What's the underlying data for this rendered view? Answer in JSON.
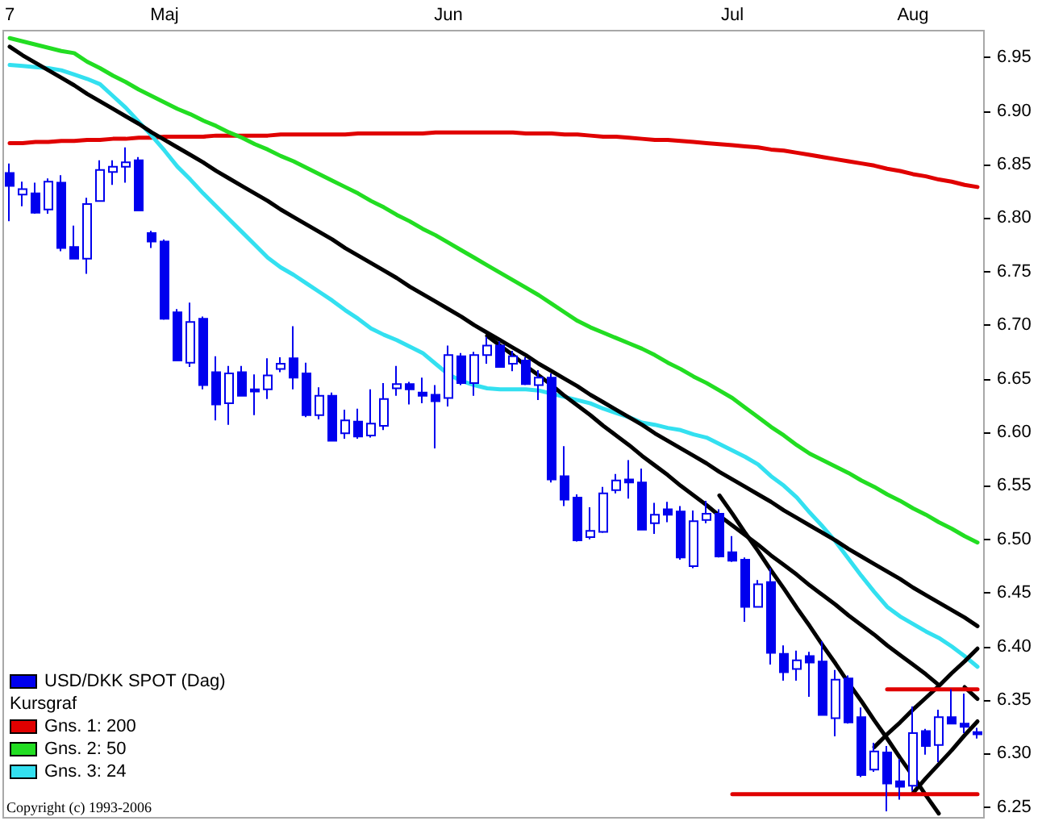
{
  "chart_data": {
    "type": "candlestick",
    "subtitle": "Kursgraf",
    "annotations": [
      "Copyright (c) 1993-2006"
    ],
    "legend": "bottom left",
    "marker": "none",
    "categories": [
      "7",
      null,
      null,
      null,
      null,
      null,
      null,
      null,
      null,
      null,
      null,
      null,
      "Maj",
      null,
      null,
      null,
      null,
      null,
      null,
      null,
      null,
      null,
      null,
      null,
      null,
      null,
      null,
      null,
      null,
      null,
      null,
      null,
      null,
      null,
      "Jun",
      null,
      null,
      null,
      null,
      null,
      null,
      null,
      null,
      null,
      null,
      null,
      null,
      null,
      null,
      null,
      null,
      null,
      null,
      null,
      null,
      null,
      "Jul",
      null,
      null,
      null,
      null,
      null,
      null,
      null,
      null,
      null,
      null,
      null,
      null,
      null,
      "Aug",
      null,
      null,
      null,
      null,
      null
    ],
    "ylim": [
      6.24,
      6.975
    ],
    "yticks": [
      6.25,
      {
        "value": 6.3,
        "label": "6.30"
      },
      6.35,
      {
        "value": 6.4,
        "label": "6.40"
      },
      6.45,
      {
        "value": 6.5,
        "label": "6.50"
      },
      6.55,
      {
        "value": 6.6,
        "label": "6.60"
      },
      6.65,
      {
        "value": 6.7,
        "label": "6.70"
      },
      6.75,
      {
        "value": 6.8,
        "label": "6.80"
      },
      6.85,
      {
        "value": 6.9,
        "label": "6.90"
      },
      6.95
    ],
    "series": [
      {
        "name": "USD/DKK SPOT (Dag)",
        "color": "#0000ee",
        "ohlc": [
          [
            6.842,
            6.851,
            6.797,
            6.83
          ],
          [
            6.822,
            6.834,
            6.811,
            6.827
          ],
          [
            6.823,
            6.833,
            6.804,
            6.805
          ],
          [
            6.808,
            6.837,
            6.804,
            6.834
          ],
          [
            6.833,
            6.84,
            6.769,
            6.772
          ],
          [
            6.773,
            6.793,
            6.762,
            6.762
          ],
          [
            6.762,
            6.819,
            6.748,
            6.813
          ],
          [
            6.816,
            6.854,
            6.816,
            6.845
          ],
          [
            6.843,
            6.854,
            6.831,
            6.848
          ],
          [
            6.848,
            6.866,
            6.833,
            6.852
          ],
          [
            6.854,
            6.857,
            6.807,
            6.807
          ],
          [
            6.786,
            6.788,
            6.772,
            6.778
          ],
          [
            6.778,
            6.78,
            6.705,
            6.706
          ],
          [
            6.712,
            6.715,
            6.667,
            6.667
          ],
          [
            6.665,
            6.721,
            6.661,
            6.703
          ],
          [
            6.706,
            6.708,
            6.64,
            6.644
          ],
          [
            6.656,
            6.671,
            6.611,
            6.626
          ],
          [
            6.627,
            6.662,
            6.607,
            6.655
          ],
          [
            6.656,
            6.662,
            6.634,
            6.634
          ],
          [
            6.64,
            6.654,
            6.616,
            6.638
          ],
          [
            6.64,
            6.669,
            6.631,
            6.653
          ],
          [
            6.659,
            6.67,
            6.656,
            6.664
          ],
          [
            6.669,
            6.699,
            6.64,
            6.651
          ],
          [
            6.655,
            6.665,
            6.614,
            6.616
          ],
          [
            6.616,
            6.642,
            6.612,
            6.634
          ],
          [
            6.634,
            6.637,
            6.592,
            6.592
          ],
          [
            6.599,
            6.621,
            6.594,
            6.611
          ],
          [
            6.61,
            6.622,
            6.594,
            6.596
          ],
          [
            6.597,
            6.64,
            6.595,
            6.608
          ],
          [
            6.606,
            6.646,
            6.602,
            6.631
          ],
          [
            6.641,
            6.662,
            6.634,
            6.645
          ],
          [
            6.645,
            6.647,
            6.626,
            6.64
          ],
          [
            6.637,
            6.651,
            6.627,
            6.634
          ],
          [
            6.635,
            6.644,
            6.585,
            6.629
          ],
          [
            6.632,
            6.681,
            6.624,
            6.672
          ],
          [
            6.671,
            6.674,
            6.644,
            6.646
          ],
          [
            6.646,
            6.675,
            6.634,
            6.672
          ],
          [
            6.672,
            6.689,
            6.664,
            6.681
          ],
          [
            6.681,
            6.685,
            6.661,
            6.661
          ],
          [
            6.664,
            6.676,
            6.657,
            6.671
          ],
          [
            6.667,
            6.67,
            6.644,
            6.645
          ],
          [
            6.644,
            6.658,
            6.63,
            6.651
          ],
          [
            6.651,
            6.655,
            6.553,
            6.556
          ],
          [
            6.559,
            6.587,
            6.531,
            6.537
          ],
          [
            6.539,
            6.542,
            6.498,
            6.499
          ],
          [
            6.502,
            6.53,
            6.5,
            6.508
          ],
          [
            6.507,
            6.549,
            6.506,
            6.543
          ],
          [
            6.546,
            6.561,
            6.543,
            6.555
          ],
          [
            6.556,
            6.574,
            6.538,
            6.553
          ],
          [
            6.553,
            6.566,
            6.509,
            6.509
          ],
          [
            6.515,
            6.534,
            6.505,
            6.523
          ],
          [
            6.528,
            6.535,
            6.516,
            6.523
          ],
          [
            6.526,
            6.531,
            6.481,
            6.483
          ],
          [
            6.475,
            6.527,
            6.473,
            6.517
          ],
          [
            6.518,
            6.536,
            6.515,
            6.524
          ],
          [
            6.524,
            6.528,
            6.483,
            6.484
          ],
          [
            6.488,
            6.503,
            6.479,
            6.48
          ],
          [
            6.481,
            6.483,
            6.423,
            6.437
          ],
          [
            6.437,
            6.462,
            6.437,
            6.458
          ],
          [
            6.46,
            6.473,
            6.383,
            6.394
          ],
          [
            6.393,
            6.401,
            6.368,
            6.376
          ],
          [
            6.379,
            6.396,
            6.368,
            6.387
          ],
          [
            6.391,
            6.395,
            6.353,
            6.385
          ],
          [
            6.386,
            6.405,
            6.336,
            6.336
          ],
          [
            6.333,
            6.378,
            6.316,
            6.369
          ],
          [
            6.37,
            6.373,
            6.328,
            6.329
          ],
          [
            6.334,
            6.343,
            6.278,
            6.28
          ],
          [
            6.285,
            6.31,
            6.283,
            6.302
          ],
          [
            6.301,
            6.307,
            6.246,
            6.272
          ],
          [
            6.274,
            6.295,
            6.257,
            6.269
          ],
          [
            6.27,
            6.344,
            6.265,
            6.319
          ],
          [
            6.321,
            6.323,
            6.299,
            6.307
          ],
          [
            6.308,
            6.341,
            6.292,
            6.334
          ],
          [
            6.334,
            6.36,
            6.328,
            6.328
          ],
          [
            6.328,
            6.356,
            6.319,
            6.325
          ],
          [
            6.32,
            6.324,
            6.314,
            6.318
          ]
        ]
      },
      {
        "type": "line",
        "name": "Gns. 1: 200",
        "color": "#e00000",
        "values": [
          6.87,
          6.87,
          6.871,
          6.871,
          6.872,
          6.872,
          6.873,
          6.873,
          6.874,
          6.874,
          6.875,
          6.875,
          6.876,
          6.876,
          6.876,
          6.876,
          6.877,
          6.877,
          6.877,
          6.877,
          6.877,
          6.878,
          6.878,
          6.878,
          6.878,
          6.878,
          6.878,
          6.879,
          6.879,
          6.879,
          6.879,
          6.879,
          6.879,
          6.88,
          6.88,
          6.88,
          6.88,
          6.88,
          6.88,
          6.88,
          6.879,
          6.879,
          6.879,
          6.878,
          6.878,
          6.877,
          6.876,
          6.876,
          6.875,
          6.874,
          6.873,
          6.873,
          6.872,
          6.871,
          6.87,
          6.869,
          6.868,
          6.867,
          6.866,
          6.864,
          6.863,
          6.861,
          6.859,
          6.857,
          6.855,
          6.853,
          6.851,
          6.849,
          6.846,
          6.844,
          6.841,
          6.839,
          6.836,
          6.834,
          6.831,
          6.829
        ]
      },
      {
        "type": "line",
        "name": "Gns. 2: 50",
        "color": "#22dd22",
        "values": [
          6.968,
          6.965,
          6.962,
          6.959,
          6.956,
          6.954,
          6.946,
          6.94,
          6.933,
          6.927,
          6.92,
          6.914,
          6.908,
          6.902,
          6.897,
          6.891,
          6.886,
          6.88,
          6.875,
          6.869,
          6.864,
          6.858,
          6.853,
          6.847,
          6.841,
          6.835,
          6.829,
          6.823,
          6.816,
          6.81,
          6.803,
          6.797,
          6.79,
          6.784,
          6.777,
          6.77,
          6.763,
          6.756,
          6.749,
          6.742,
          6.735,
          6.728,
          6.72,
          6.712,
          6.704,
          6.698,
          6.693,
          6.688,
          6.683,
          6.678,
          6.672,
          6.665,
          6.659,
          6.652,
          6.646,
          6.639,
          6.632,
          6.623,
          6.614,
          6.605,
          6.597,
          6.588,
          6.58,
          6.574,
          6.568,
          6.562,
          6.555,
          6.549,
          6.542,
          6.536,
          6.529,
          6.523,
          6.516,
          6.51,
          6.503,
          6.497
        ]
      },
      {
        "type": "line",
        "name": "Gns. 3: 24",
        "color": "#33e0f0",
        "values": [
          6.943,
          6.942,
          6.941,
          6.94,
          6.938,
          6.934,
          6.93,
          6.925,
          6.914,
          6.903,
          6.89,
          6.877,
          6.863,
          6.848,
          6.836,
          6.823,
          6.811,
          6.799,
          6.787,
          6.775,
          6.763,
          6.754,
          6.747,
          6.739,
          6.731,
          6.723,
          6.714,
          6.706,
          6.697,
          6.691,
          6.686,
          6.68,
          6.674,
          6.664,
          6.654,
          6.648,
          6.644,
          6.641,
          6.64,
          6.64,
          6.64,
          6.639,
          6.636,
          6.633,
          6.63,
          6.627,
          6.622,
          6.618,
          6.614,
          6.609,
          6.607,
          6.604,
          6.602,
          6.598,
          6.595,
          6.589,
          6.583,
          6.577,
          6.57,
          6.559,
          6.55,
          6.539,
          6.525,
          6.512,
          6.498,
          6.482,
          6.466,
          6.451,
          6.437,
          6.428,
          6.421,
          6.414,
          6.408,
          6.4,
          6.391,
          6.381
        ]
      },
      {
        "type": "line",
        "color": "#000000",
        "values": [
          6.96,
          6.952,
          6.945,
          6.938,
          6.931,
          6.924,
          6.916,
          6.909,
          6.902,
          6.895,
          6.888,
          6.88,
          6.873,
          6.866,
          6.859,
          6.852,
          6.844,
          6.837,
          6.83,
          6.823,
          6.816,
          6.808,
          6.801,
          6.794,
          6.787,
          6.78,
          6.772,
          6.765,
          6.758,
          6.751,
          6.744,
          6.736,
          6.729,
          6.722,
          6.715,
          6.708,
          6.7,
          6.693,
          6.686,
          6.679,
          6.672,
          6.664,
          6.657,
          6.65,
          6.643,
          6.635,
          6.628,
          6.621,
          6.614,
          6.607,
          6.599,
          6.592,
          6.585,
          6.578,
          6.571,
          6.563,
          6.556,
          6.549,
          6.542,
          6.535,
          6.527,
          6.52,
          6.513,
          6.506,
          6.499,
          6.491,
          6.484,
          6.477,
          6.47,
          6.463,
          6.455,
          6.448,
          6.441,
          6.434,
          6.427,
          6.419
        ]
      },
      {
        "type": "line",
        "color": "#000000",
        "values": [
          null,
          null,
          null,
          null,
          null,
          null,
          null,
          null,
          null,
          null,
          null,
          null,
          null,
          null,
          null,
          null,
          null,
          null,
          null,
          null,
          null,
          null,
          null,
          null,
          null,
          null,
          null,
          null,
          null,
          null,
          null,
          null,
          null,
          null,
          null,
          null,
          null,
          6.69,
          6.681,
          6.672,
          6.662,
          6.653,
          6.644,
          6.634,
          6.625,
          6.616,
          6.606,
          6.597,
          6.588,
          6.578,
          6.569,
          6.56,
          6.55,
          6.541,
          6.532,
          6.522,
          6.513,
          6.504,
          6.495,
          6.485,
          6.476,
          6.467,
          6.457,
          6.448,
          6.439,
          6.429,
          6.42,
          6.411,
          6.401,
          6.392,
          6.383,
          6.374,
          6.364,
          null,
          null,
          null
        ]
      },
      {
        "type": "line",
        "color": "#000000",
        "values": [
          null,
          null,
          null,
          null,
          null,
          null,
          null,
          null,
          null,
          null,
          null,
          null,
          null,
          null,
          null,
          null,
          null,
          null,
          null,
          null,
          null,
          null,
          null,
          null,
          null,
          null,
          null,
          null,
          null,
          null,
          null,
          null,
          null,
          null,
          null,
          null,
          null,
          null,
          null,
          null,
          null,
          null,
          null,
          null,
          null,
          null,
          null,
          null,
          null,
          null,
          null,
          null,
          null,
          null,
          null,
          6.541,
          6.524,
          6.506,
          6.489,
          6.471,
          6.454,
          6.436,
          6.419,
          6.401,
          6.384,
          6.366,
          6.349,
          6.331,
          6.314,
          6.296,
          6.279,
          6.261,
          6.244,
          null,
          null,
          null
        ]
      },
      {
        "type": "line",
        "color": "#000000",
        "values": [
          null,
          null,
          null,
          null,
          null,
          null,
          null,
          null,
          null,
          null,
          null,
          null,
          null,
          null,
          null,
          null,
          null,
          null,
          null,
          null,
          null,
          null,
          null,
          null,
          null,
          null,
          null,
          null,
          null,
          null,
          null,
          null,
          null,
          null,
          null,
          null,
          null,
          null,
          null,
          null,
          null,
          null,
          null,
          null,
          null,
          null,
          null,
          null,
          null,
          null,
          null,
          null,
          null,
          null,
          null,
          null,
          null,
          null,
          null,
          null,
          null,
          null,
          null,
          null,
          null,
          null,
          null,
          6.306,
          6.318,
          6.329,
          6.341,
          6.352,
          6.363,
          6.375,
          6.386,
          6.398
        ]
      },
      {
        "type": "line",
        "color": "#000000",
        "values": [
          null,
          null,
          null,
          null,
          null,
          null,
          null,
          null,
          null,
          null,
          null,
          null,
          null,
          null,
          null,
          null,
          null,
          null,
          null,
          null,
          null,
          null,
          null,
          null,
          null,
          null,
          null,
          null,
          null,
          null,
          null,
          null,
          null,
          null,
          null,
          null,
          null,
          null,
          null,
          null,
          null,
          null,
          null,
          null,
          null,
          null,
          null,
          null,
          null,
          null,
          null,
          null,
          null,
          null,
          null,
          null,
          null,
          null,
          null,
          null,
          null,
          null,
          null,
          null,
          null,
          null,
          null,
          null,
          null,
          null,
          6.263,
          6.277,
          6.29,
          6.303,
          6.317,
          6.33
        ]
      },
      {
        "type": "line",
        "color": "#000000",
        "values": [
          null,
          null,
          null,
          null,
          null,
          null,
          null,
          null,
          null,
          null,
          null,
          null,
          null,
          null,
          null,
          null,
          null,
          null,
          null,
          null,
          null,
          null,
          null,
          null,
          null,
          null,
          null,
          null,
          null,
          null,
          null,
          null,
          null,
          null,
          null,
          null,
          null,
          null,
          null,
          null,
          null,
          null,
          null,
          null,
          null,
          null,
          null,
          null,
          null,
          null,
          null,
          null,
          null,
          null,
          null,
          null,
          null,
          null,
          null,
          null,
          null,
          null,
          null,
          null,
          null,
          null,
          null,
          null,
          null,
          null,
          null,
          null,
          null,
          null,
          6.362,
          6.351
        ]
      },
      {
        "type": "line",
        "color": "#e00000",
        "values": [
          null,
          null,
          null,
          null,
          null,
          null,
          null,
          null,
          null,
          null,
          null,
          null,
          null,
          null,
          null,
          null,
          null,
          null,
          null,
          null,
          null,
          null,
          null,
          null,
          null,
          null,
          null,
          null,
          null,
          null,
          null,
          null,
          null,
          null,
          null,
          null,
          null,
          null,
          null,
          null,
          null,
          null,
          null,
          null,
          null,
          null,
          null,
          null,
          null,
          null,
          null,
          null,
          null,
          null,
          null,
          null,
          6.262,
          6.262,
          6.262,
          6.262,
          6.262,
          6.262,
          6.262,
          6.262,
          6.262,
          6.262,
          6.262,
          6.262,
          6.262,
          6.262,
          6.262,
          6.262,
          6.262,
          6.262,
          6.262,
          6.262
        ]
      },
      {
        "type": "line",
        "color": "#e00000",
        "values": [
          null,
          null,
          null,
          null,
          null,
          null,
          null,
          null,
          null,
          null,
          null,
          null,
          null,
          null,
          null,
          null,
          null,
          null,
          null,
          null,
          null,
          null,
          null,
          null,
          null,
          null,
          null,
          null,
          null,
          null,
          null,
          null,
          null,
          null,
          null,
          null,
          null,
          null,
          null,
          null,
          null,
          null,
          null,
          null,
          null,
          null,
          null,
          null,
          null,
          null,
          null,
          null,
          null,
          null,
          null,
          null,
          null,
          null,
          null,
          null,
          null,
          null,
          null,
          null,
          null,
          null,
          null,
          null,
          6.36,
          6.36,
          6.36,
          6.36,
          6.36,
          6.36,
          6.36,
          6.36
        ]
      }
    ]
  }
}
